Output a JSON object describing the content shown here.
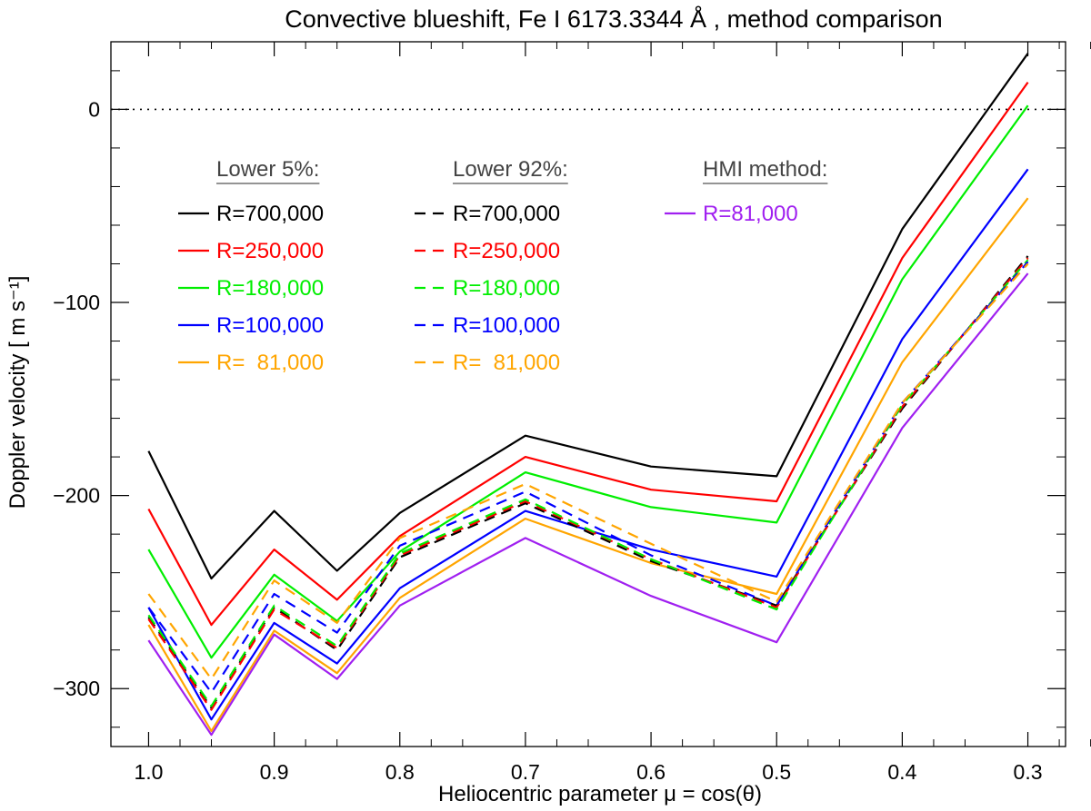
{
  "chart_data": {
    "type": "line",
    "title": "Convective blueshift, Fe I 6173.3344 Å , method comparison",
    "xlabel": "Heliocentric parameter μ = cos(θ)",
    "ylabel": "Doppler velocity [ m s⁻¹]",
    "xlim": [
      1.03,
      0.27
    ],
    "ylim": [
      -330,
      35
    ],
    "x_ticks": [
      1.0,
      0.9,
      0.8,
      0.7,
      0.6,
      0.5,
      0.4,
      0.3
    ],
    "x_tick_labels": [
      "1.0",
      "0.9",
      "0.8",
      "0.7",
      "0.6",
      "0.5",
      "0.4",
      "0.3"
    ],
    "y_ticks": [
      -300,
      -200,
      -100,
      0
    ],
    "y_tick_labels": [
      "−300",
      "−200",
      "−100",
      "0"
    ],
    "zero_line": true,
    "grid": false,
    "x": [
      1.0,
      0.95,
      0.9,
      0.85,
      0.8,
      0.7,
      0.6,
      0.5,
      0.4,
      0.3
    ],
    "legend_groups": [
      {
        "title": "Lower 5%:",
        "entries": [
          "R=700,000",
          "R=250,000",
          "R=180,000",
          "R=100,000",
          "R=  81,000"
        ]
      },
      {
        "title": "Lower 92%:",
        "entries": [
          "R=700,000",
          "R=250,000",
          "R=180,000",
          "R=100,000",
          "R=  81,000"
        ]
      },
      {
        "title": "HMI method:",
        "entries": [
          "R=81,000"
        ]
      }
    ],
    "series": [
      {
        "name": "R=700,000",
        "group": 0,
        "color": "#000000",
        "dash": "solid",
        "values": [
          -177,
          -243,
          -208,
          -239,
          -209,
          -169,
          -185,
          -190,
          -62,
          29
        ]
      },
      {
        "name": "R=250,000",
        "group": 0,
        "color": "#ff0000",
        "dash": "solid",
        "values": [
          -207,
          -267,
          -228,
          -254,
          -221,
          -180,
          -197,
          -203,
          -77,
          14
        ]
      },
      {
        "name": "R=180,000",
        "group": 0,
        "color": "#00ee00",
        "dash": "solid",
        "values": [
          -228,
          -284,
          -241,
          -265,
          -229,
          -188,
          -206,
          -214,
          -88,
          2
        ]
      },
      {
        "name": "R=100,000",
        "group": 0,
        "color": "#0000ff",
        "dash": "solid",
        "values": [
          -258,
          -316,
          -266,
          -287,
          -248,
          -208,
          -228,
          -242,
          -119,
          -31
        ]
      },
      {
        "name": "R=  81,000",
        "group": 0,
        "color": "#ffa500",
        "dash": "solid",
        "values": [
          -267,
          -322,
          -270,
          -292,
          -253,
          -212,
          -235,
          -251,
          -131,
          -46
        ]
      },
      {
        "name": "R=700,000",
        "group": 1,
        "color": "#000000",
        "dash": "dashed",
        "values": [
          -263,
          -310,
          -258,
          -280,
          -232,
          -204,
          -234,
          -257,
          -155,
          -76
        ]
      },
      {
        "name": "R=250,000",
        "group": 1,
        "color": "#ff0000",
        "dash": "dashed",
        "values": [
          -264,
          -311,
          -259,
          -279,
          -231,
          -203,
          -233,
          -258,
          -154,
          -77
        ]
      },
      {
        "name": "R=180,000",
        "group": 1,
        "color": "#00ee00",
        "dash": "dashed",
        "values": [
          -262,
          -309,
          -257,
          -278,
          -230,
          -202,
          -233,
          -259,
          -153,
          -78
        ]
      },
      {
        "name": "R=100,000",
        "group": 1,
        "color": "#0000ff",
        "dash": "dashed",
        "values": [
          -258,
          -302,
          -251,
          -271,
          -226,
          -198,
          -231,
          -257,
          -152,
          -79
        ]
      },
      {
        "name": "R=  81,000",
        "group": 1,
        "color": "#ffa500",
        "dash": "dashed",
        "values": [
          -251,
          -295,
          -244,
          -266,
          -222,
          -194,
          -225,
          -255,
          -152,
          -80
        ]
      },
      {
        "name": "R=81,000",
        "group": 2,
        "color": "#a020f0",
        "dash": "solid",
        "values": [
          -275,
          -324,
          -272,
          -295,
          -257,
          -222,
          -252,
          -276,
          -165,
          -85
        ]
      }
    ]
  }
}
